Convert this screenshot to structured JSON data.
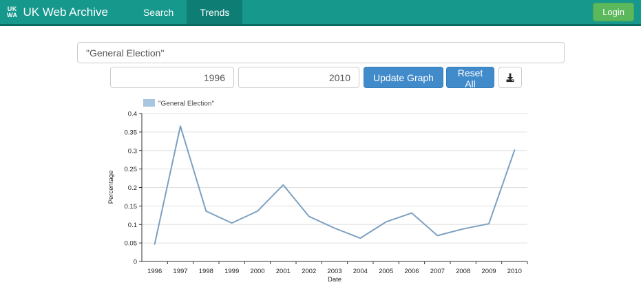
{
  "header": {
    "logo_line1": "UK",
    "logo_line2": "WA",
    "brand": "UK Web Archive",
    "nav": [
      {
        "label": "Search",
        "active": false
      },
      {
        "label": "Trends",
        "active": true
      }
    ],
    "login_label": "Login",
    "colors": {
      "navbar": "#17988D",
      "navbar_active": "#0E7D74",
      "login_green": "#5CB85C"
    }
  },
  "search": {
    "query": "\"General Election\""
  },
  "controls": {
    "from_year": "1996",
    "to_year": "2010",
    "update_label": "Update Graph",
    "reset_label": "Reset All",
    "download_icon": "download-icon",
    "button_color": "#428BCA"
  },
  "chart_data": {
    "type": "line",
    "title": "",
    "xlabel": "Date",
    "ylabel": "Percentage",
    "x": [
      1996,
      1997,
      1998,
      1999,
      2000,
      2001,
      2002,
      2003,
      2004,
      2005,
      2006,
      2007,
      2008,
      2009,
      2010
    ],
    "series": [
      {
        "name": "\"General Election\"",
        "values": [
          0.047,
          0.366,
          0.136,
          0.104,
          0.136,
          0.207,
          0.122,
          0.09,
          0.063,
          0.107,
          0.131,
          0.07,
          0.088,
          0.102,
          0.301
        ]
      }
    ],
    "ylim": [
      0,
      0.4
    ],
    "ytick_step": 0.05,
    "grid": true,
    "legend_position": "top-left",
    "line_color": "#7CA0C0",
    "swatch_color": "#A9C6E0",
    "grid_color": "#E0E0E0",
    "axis_color": "#333333"
  }
}
